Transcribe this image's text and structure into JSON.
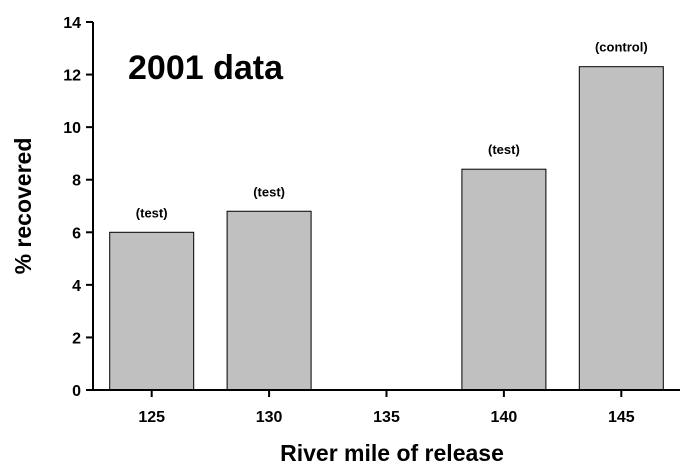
{
  "chart_data": {
    "type": "bar",
    "title": "2001 data",
    "xlabel": "River mile of release",
    "ylabel": "% recovered",
    "categories": [
      "125",
      "130",
      "135",
      "140",
      "145"
    ],
    "values": [
      6.0,
      6.8,
      null,
      8.4,
      12.3
    ],
    "annotations": [
      "(test)",
      "(test)",
      "",
      "(test)",
      "(control)"
    ],
    "ylim": [
      0,
      14
    ],
    "yticks": [
      "0",
      "2",
      "4",
      "6",
      "8",
      "10",
      "12",
      "14"
    ],
    "grid": false,
    "legend": "none",
    "colors": {
      "bar_fill": "#c0c0c0",
      "bar_stroke": "#000000",
      "axis": "#000000",
      "text": "#000000"
    }
  }
}
